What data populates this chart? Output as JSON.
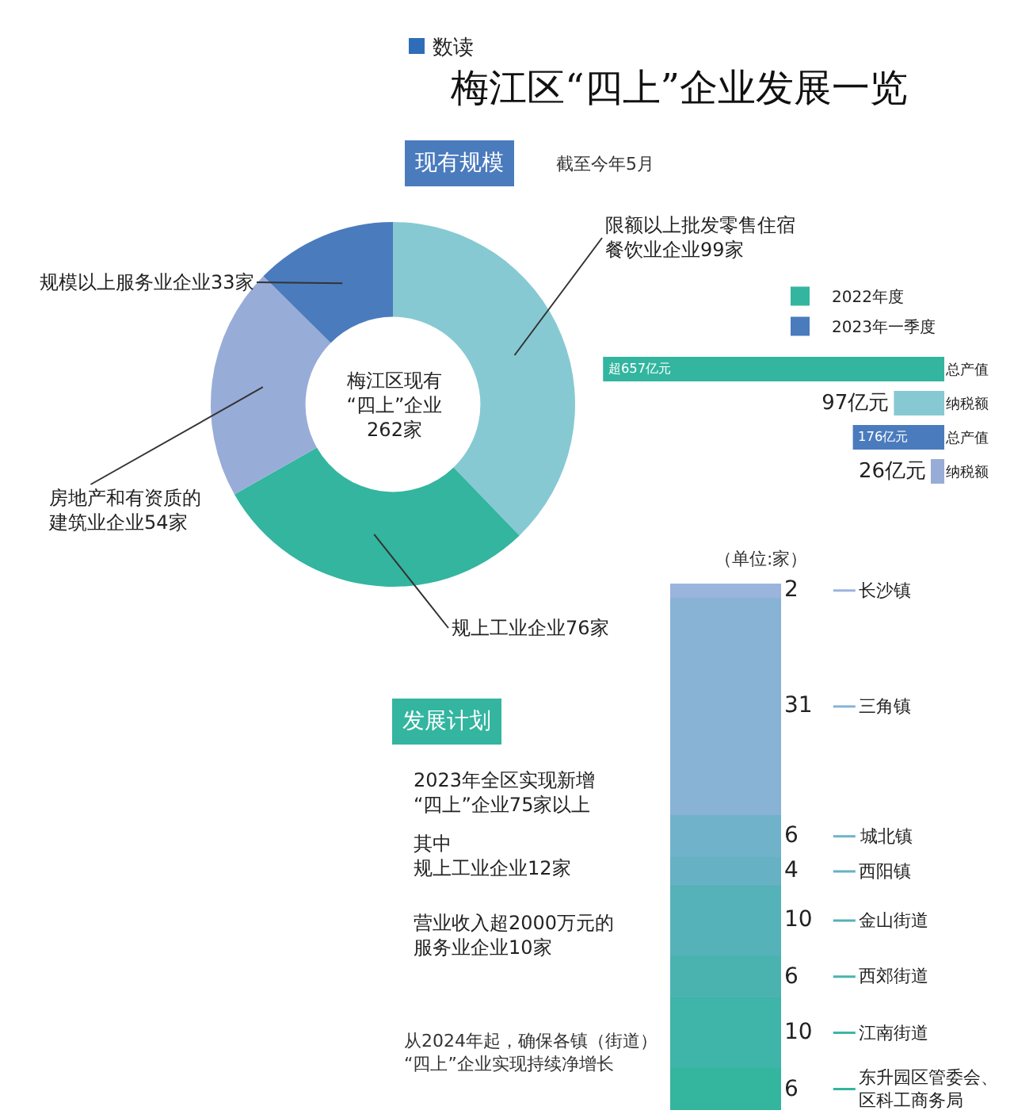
{
  "chart_data": [
    {
      "type": "donut",
      "title": "梅江区“四上”企业发展一览",
      "annotations": [
        "数读",
        "现有规模",
        "截至今年5月",
        "梅江区现有“四上”企业262家"
      ],
      "categories": [
        "限额以上批发零售住宿餐饮业企业",
        "规上工业企业",
        "房地产和有资质的建筑业企业",
        "规模以上服务业企业"
      ],
      "values": [
        99,
        76,
        54,
        33
      ],
      "value_labels": [
        "99家",
        "76家",
        "54家",
        "33家"
      ],
      "colors": [
        "#86c9d3",
        "#33b59f",
        "#98acd8",
        "#4a7bbd"
      ]
    },
    {
      "type": "bar",
      "orientation": "horizontal",
      "legend": "top right",
      "categories": [
        "总产值",
        "纳税额",
        "总产值",
        "纳税额"
      ],
      "series": [
        {
          "name": "2022年度",
          "colors": [
            "#33b59f",
            "#86c9d3",
            "#33b59f",
            "#86c9d3"
          ],
          "values": [
            657,
            97,
            null,
            null
          ],
          "value_labels": [
            "超657亿元",
            "97亿元",
            null,
            null
          ]
        },
        {
          "name": "2023年一季度",
          "colors": [
            "#4a7bbd",
            "#98acd8",
            "#4a7bbd",
            "#98acd8"
          ],
          "values": [
            null,
            null,
            176,
            26
          ],
          "value_labels": [
            null,
            null,
            "176亿元",
            "26亿元"
          ]
        }
      ]
    },
    {
      "type": "bar",
      "stacked": true,
      "data_labels": true,
      "legend": "right",
      "annotations": [
        "（单位:家）",
        "发展计划",
        "2023年全区实现新增“四上”企业75家以上",
        "其中规上工业企业12家",
        "营业收入超2000万元的服务业企业10家",
        "从2024年起，确保各镇（街道）“四上”企业实现持续净增长"
      ],
      "categories": [
        null
      ],
      "series": [
        {
          "name": "东升园区管委会、区科工商务局",
          "color": "#34b59d",
          "values": [
            6
          ]
        },
        {
          "name": "江南街道",
          "color": "#3fb4a8",
          "values": [
            10
          ]
        },
        {
          "name": "西郊街道",
          "color": "#4ab3b0",
          "values": [
            6
          ]
        },
        {
          "name": "金山街道",
          "color": "#54b2b8",
          "values": [
            10
          ]
        },
        {
          "name": "西阳镇",
          "color": "#66b1c4",
          "values": [
            4
          ]
        },
        {
          "name": "城北镇",
          "color": "#70b2c9",
          "values": [
            6
          ]
        },
        {
          "name": "三角镇",
          "color": "#88b3d5",
          "values": [
            31
          ]
        },
        {
          "name": "长沙镇",
          "color": "#9ab4de",
          "values": [
            2
          ]
        }
      ]
    }
  ]
}
